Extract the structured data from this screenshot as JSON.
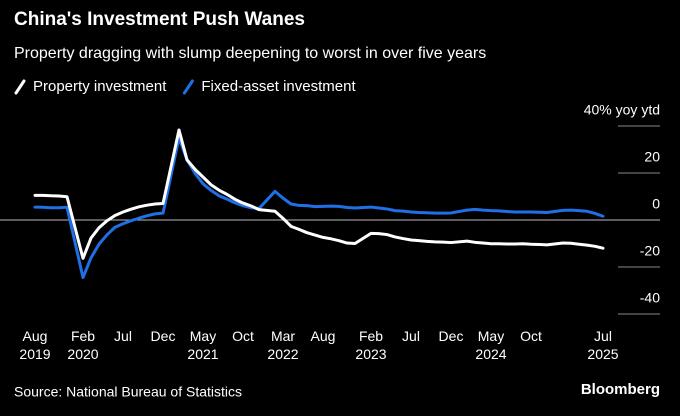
{
  "chart_data": {
    "type": "line",
    "title": "China's Investment Push Wanes",
    "subtitle": "Property dragging with slump deepening to worst in over five years",
    "source": "Source: National Bureau of Statistics",
    "brand": "Bloomberg",
    "x": [
      "2019-08",
      "2019-09",
      "2019-10",
      "2019-11",
      "2019-12",
      "2020-02",
      "2020-03",
      "2020-04",
      "2020-05",
      "2020-06",
      "2020-07",
      "2020-08",
      "2020-09",
      "2020-10",
      "2020-11",
      "2020-12",
      "2021-02",
      "2021-03",
      "2021-04",
      "2021-05",
      "2021-06",
      "2021-07",
      "2021-08",
      "2021-09",
      "2021-10",
      "2021-11",
      "2021-12",
      "2022-02",
      "2022-03",
      "2022-04",
      "2022-05",
      "2022-06",
      "2022-07",
      "2022-08",
      "2022-09",
      "2022-10",
      "2022-11",
      "2022-12",
      "2023-02",
      "2023-03",
      "2023-04",
      "2023-05",
      "2023-06",
      "2023-07",
      "2023-08",
      "2023-09",
      "2023-10",
      "2023-11",
      "2023-12",
      "2024-02",
      "2024-03",
      "2024-04",
      "2024-05",
      "2024-06",
      "2024-07",
      "2024-08",
      "2024-09",
      "2024-10",
      "2024-11",
      "2024-12",
      "2025-02",
      "2025-03",
      "2025-04",
      "2025-05",
      "2025-06",
      "2025-07"
    ],
    "xlim": [
      "2019-08",
      "2025-07"
    ],
    "xticks": [
      {
        "value": "2019-08",
        "label": "Aug 2019"
      },
      {
        "value": "2020-02",
        "label": "Feb 2020"
      },
      {
        "value": "2020-07",
        "label": "Jul"
      },
      {
        "value": "2020-12",
        "label": "Dec"
      },
      {
        "value": "2021-05",
        "label": "May 2021"
      },
      {
        "value": "2021-10",
        "label": "Oct"
      },
      {
        "value": "2022-03",
        "label": "Mar 2022"
      },
      {
        "value": "2022-08",
        "label": "Aug"
      },
      {
        "value": "2023-02",
        "label": "Feb 2023"
      },
      {
        "value": "2023-07",
        "label": "Jul"
      },
      {
        "value": "2023-12",
        "label": "Dec"
      },
      {
        "value": "2024-05",
        "label": "May 2024"
      },
      {
        "value": "2024-10",
        "label": "Oct"
      },
      {
        "value": "2025-07",
        "label": "Jul 2025"
      }
    ],
    "ylim": [
      -42,
      46
    ],
    "yticks": [
      {
        "value": 40,
        "label": "40% yoy ytd"
      },
      20,
      0,
      -20,
      -40
    ],
    "series": [
      {
        "name": "Property investment",
        "color": "#ffffff",
        "values": [
          10.5,
          10.5,
          10.3,
          10.2,
          9.9,
          -16.3,
          -7.7,
          -3.3,
          -0.3,
          1.9,
          3.4,
          4.6,
          5.6,
          6.3,
          6.8,
          7.0,
          38.3,
          25.6,
          21.6,
          18.3,
          15.0,
          12.7,
          10.9,
          8.8,
          7.2,
          6.0,
          4.4,
          3.7,
          0.7,
          -2.7,
          -4.0,
          -5.4,
          -6.4,
          -7.4,
          -8.0,
          -8.8,
          -9.8,
          -10.0,
          -5.7,
          -5.8,
          -6.2,
          -7.2,
          -7.9,
          -8.5,
          -8.8,
          -9.1,
          -9.3,
          -9.4,
          -9.6,
          -9.0,
          -9.5,
          -9.8,
          -10.1,
          -10.1,
          -10.2,
          -10.2,
          -10.1,
          -10.3,
          -10.4,
          -10.6,
          -9.8,
          -9.9,
          -10.3,
          -10.7,
          -11.2,
          -12.0
        ]
      },
      {
        "name": "Fixed-asset investment",
        "color": "#1f6fe5",
        "values": [
          5.5,
          5.4,
          5.2,
          5.2,
          5.4,
          -24.5,
          -16.1,
          -10.3,
          -6.3,
          -3.1,
          -1.6,
          -0.3,
          0.8,
          1.8,
          2.6,
          2.9,
          35.0,
          25.6,
          19.9,
          15.4,
          12.6,
          10.3,
          8.9,
          7.3,
          6.1,
          5.2,
          4.9,
          12.2,
          9.3,
          6.8,
          6.2,
          6.1,
          5.7,
          5.8,
          5.9,
          5.8,
          5.3,
          5.1,
          5.5,
          5.1,
          4.7,
          4.0,
          3.8,
          3.4,
          3.2,
          3.1,
          2.9,
          2.9,
          3.0,
          4.2,
          4.5,
          4.2,
          4.0,
          3.9,
          3.6,
          3.4,
          3.4,
          3.4,
          3.3,
          3.2,
          4.1,
          4.2,
          4.0,
          3.7,
          2.8,
          1.6
        ]
      }
    ]
  }
}
